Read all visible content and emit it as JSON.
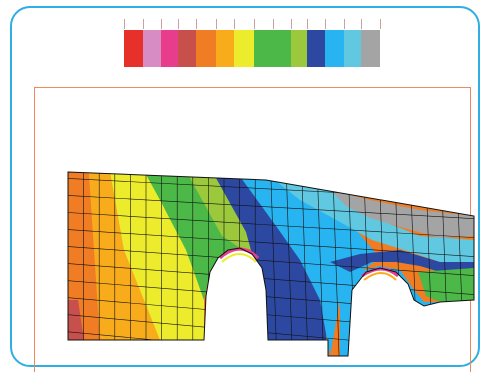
{
  "legend": {
    "colors": [
      "#e8302a",
      "#d88cc4",
      "#e83c8c",
      "#c8504c",
      "#f07c24",
      "#f8ac1c",
      "#ecec2c",
      "#4cb848",
      "#4cb848",
      "#9cc83c",
      "#2c48a0",
      "#28b4f0",
      "#60c8e0",
      "#a4a4a4"
    ]
  },
  "model": {
    "fills": {
      "orange": "#f07c24",
      "amber": "#f8ac1c",
      "yellow": "#ecec2c",
      "lime": "#9cc83c",
      "green": "#4cb848",
      "navy": "#2c48a0",
      "sky": "#28b4f0",
      "cyan": "#60c8e0",
      "gray": "#a4a4a4",
      "red": "#c8504c",
      "magenta": "#e83c8c"
    }
  }
}
